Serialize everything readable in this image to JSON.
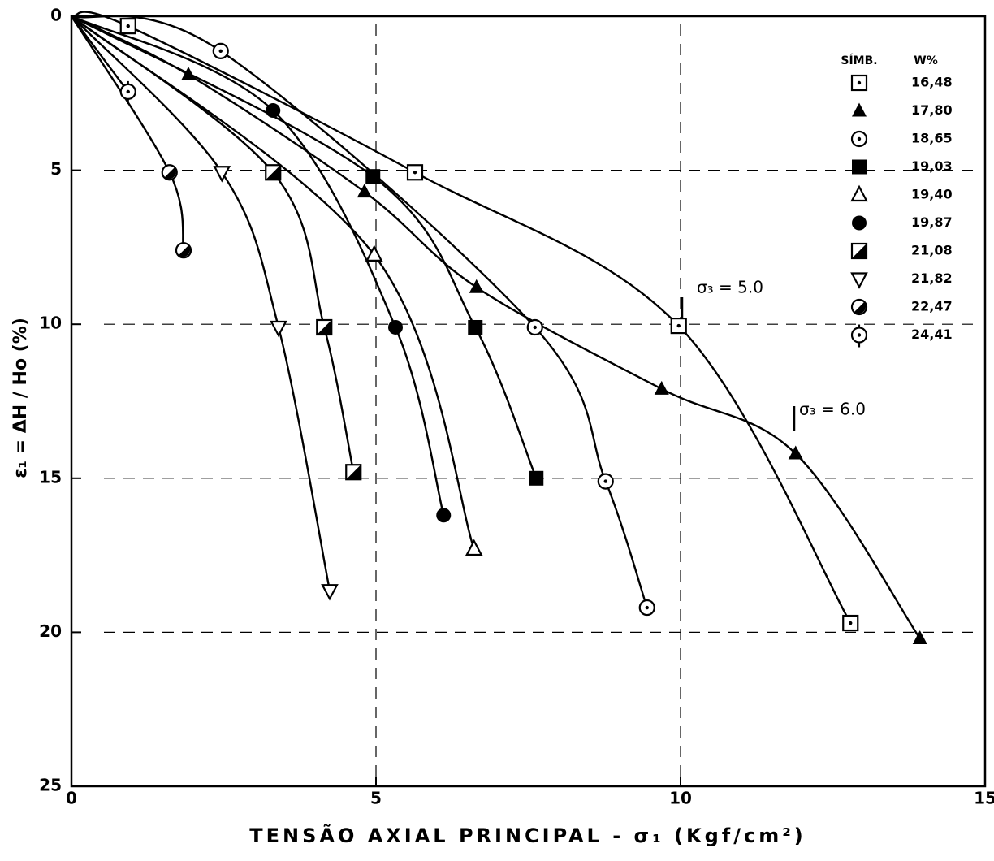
{
  "chart_data": {
    "type": "line",
    "xlabel": "TENSÃO AXIAL PRINCIPAL - σ₁ (Kgf/cm²)",
    "ylabel": "ε₁ = ΔH / Ho (%)",
    "xlim": [
      0,
      15
    ],
    "xticks": [
      0,
      5,
      10,
      15
    ],
    "ylim": [
      0,
      25
    ],
    "yticks": [
      0,
      5,
      10,
      15,
      20,
      25
    ],
    "y_inverted": true,
    "grid": true,
    "legend_title": [
      "SÍMB.",
      "W%"
    ],
    "annotations": [
      "σ₃ = 5.0",
      "σ₃ = 6.0"
    ],
    "series": [
      {
        "name": "16,48",
        "marker": "square-dot",
        "color": "#000000",
        "x": [
          0,
          0.93,
          5.64,
          9.97,
          12.79
        ],
        "values": [
          0,
          0.32,
          5.07,
          10.05,
          19.7
        ]
      },
      {
        "name": "17,80",
        "marker": "triangle",
        "color": "#000000",
        "x": [
          0,
          1.92,
          4.81,
          6.65,
          9.69,
          11.89,
          13.93
        ],
        "values": [
          0,
          1.9,
          5.7,
          8.8,
          12.1,
          14.2,
          20.2
        ]
      },
      {
        "name": "18,65",
        "marker": "circle-dot",
        "color": "#000000",
        "x": [
          0,
          2.45,
          7.61,
          8.77,
          9.45
        ],
        "values": [
          0,
          1.13,
          10.1,
          15.1,
          19.2
        ]
      },
      {
        "name": "19,03",
        "marker": "square",
        "color": "#000000",
        "x": [
          0,
          4.95,
          6.63,
          7.63
        ],
        "values": [
          0,
          5.2,
          10.1,
          15.0
        ]
      },
      {
        "name": "19,40",
        "marker": "triangle-open",
        "color": "#000000",
        "x": [
          0,
          4.97,
          6.61
        ],
        "values": [
          0,
          7.75,
          17.3
        ]
      },
      {
        "name": "19,87",
        "marker": "circle",
        "color": "#000000",
        "x": [
          0,
          3.31,
          5.32,
          6.11
        ],
        "values": [
          0,
          3.06,
          10.1,
          16.2
        ]
      },
      {
        "name": "21,08",
        "marker": "square-half",
        "color": "#000000",
        "x": [
          0,
          3.31,
          4.15,
          4.63
        ],
        "values": [
          0,
          5.07,
          10.1,
          14.8
        ]
      },
      {
        "name": "21,82",
        "marker": "triangle-down",
        "color": "#000000",
        "x": [
          0,
          2.47,
          3.4,
          4.24
        ],
        "values": [
          0,
          5.07,
          10.1,
          18.65
        ]
      },
      {
        "name": "22,47",
        "marker": "circle-half",
        "color": "#000000",
        "x": [
          0,
          1.61,
          1.84
        ],
        "values": [
          0,
          5.07,
          7.6
        ]
      },
      {
        "name": "24,41",
        "marker": "circle-tail",
        "color": "#000000",
        "x": [
          0,
          0.93
        ],
        "values": [
          0,
          2.45
        ]
      }
    ]
  }
}
